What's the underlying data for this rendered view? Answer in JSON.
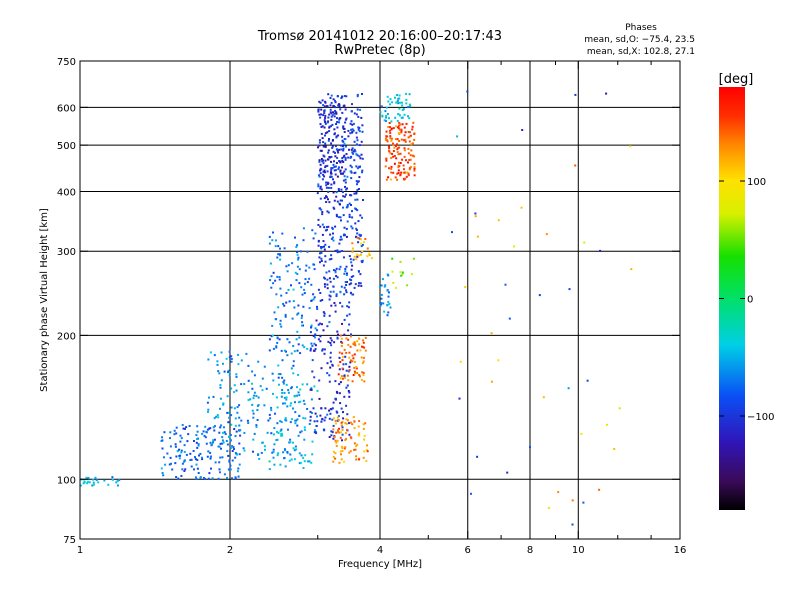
{
  "chart_data": {
    "type": "scatter",
    "title": "Tromsø 20141012 20:16:00–20:17:43",
    "subtitle": "RwPretec (8p)",
    "stats": {
      "heading": "Phases",
      "line1": "mean, sd,O: −75.4, 23.5",
      "line2": "mean, sd,X: 102.8, 27.1"
    },
    "xlabel": "Frequency [MHz]",
    "ylabel": "Stationary phase Virtual Height [km]",
    "x_scale": "log",
    "y_scale": "log",
    "xlim": [
      1,
      16
    ],
    "ylim": [
      75,
      750
    ],
    "x_ticks": [
      1,
      2,
      4,
      6,
      8,
      10,
      16
    ],
    "x_tick_labels": [
      "1",
      "2",
      "4",
      "6",
      "8",
      "10",
      "16"
    ],
    "x_minor_ticks": [
      3,
      5,
      7,
      9,
      12,
      14
    ],
    "y_ticks": [
      75,
      100,
      200,
      300,
      400,
      500,
      600,
      750
    ],
    "y_tick_labels": [
      "75",
      "100",
      "200",
      "300",
      "400",
      "500",
      "600",
      "750"
    ],
    "x_gridlines": [
      2,
      4,
      6,
      8,
      10
    ],
    "y_gridlines": [
      100,
      200,
      300,
      400,
      500,
      600
    ],
    "colorbar": {
      "label": "[deg]",
      "range": [
        -180,
        180
      ],
      "ticks": [
        100,
        0,
        -100
      ],
      "tick_labels": [
        "100",
        "0",
        "−100"
      ]
    },
    "clusters": [
      {
        "f": [
          1.0,
          1.2
        ],
        "h": [
          97,
          101
        ],
        "phase": -55,
        "n": 25
      },
      {
        "f": [
          1.45,
          2.1
        ],
        "h": [
          100,
          130
        ],
        "phase": -75,
        "n": 170
      },
      {
        "f": [
          1.8,
          2.8
        ],
        "h": [
          110,
          185
        ],
        "phase": -60,
        "n": 200
      },
      {
        "f": [
          2.4,
          3.0
        ],
        "h": [
          105,
          160
        ],
        "phase": -50,
        "n": 80
      },
      {
        "f": [
          2.4,
          3.0
        ],
        "h": [
          185,
          340
        ],
        "phase": -72,
        "n": 140
      },
      {
        "f": [
          2.9,
          3.5
        ],
        "h": [
          120,
          240
        ],
        "phase": -105,
        "n": 160
      },
      {
        "f": [
          3.0,
          3.7
        ],
        "h": [
          240,
          640
        ],
        "phase": -95,
        "n": 420
      },
      {
        "f": [
          3.0,
          3.4
        ],
        "h": [
          380,
          620
        ],
        "phase": -112,
        "n": 120
      },
      {
        "f": [
          3.2,
          3.8
        ],
        "h": [
          108,
          135
        ],
        "phase": 130,
        "n": 80
      },
      {
        "f": [
          3.3,
          3.75
        ],
        "h": [
          160,
          200
        ],
        "phase": 140,
        "n": 70
      },
      {
        "f": [
          3.5,
          3.9
        ],
        "h": [
          285,
          320
        ],
        "phase": 110,
        "n": 20
      },
      {
        "f": [
          4.1,
          4.7
        ],
        "h": [
          420,
          560
        ],
        "phase": 150,
        "n": 140
      },
      {
        "f": [
          4.0,
          4.6
        ],
        "h": [
          560,
          640
        ],
        "phase": -45,
        "n": 50
      },
      {
        "f": [
          4.0,
          4.2
        ],
        "h": [
          220,
          270
        ],
        "phase": -70,
        "n": 25
      },
      {
        "f": [
          4.2,
          4.8
        ],
        "h": [
          250,
          300
        ],
        "phase": 60,
        "n": 12
      },
      {
        "f": [
          5.5,
          14.0
        ],
        "h": [
          80,
          660
        ],
        "phase": 0,
        "n": 45,
        "mixed": true
      }
    ]
  }
}
